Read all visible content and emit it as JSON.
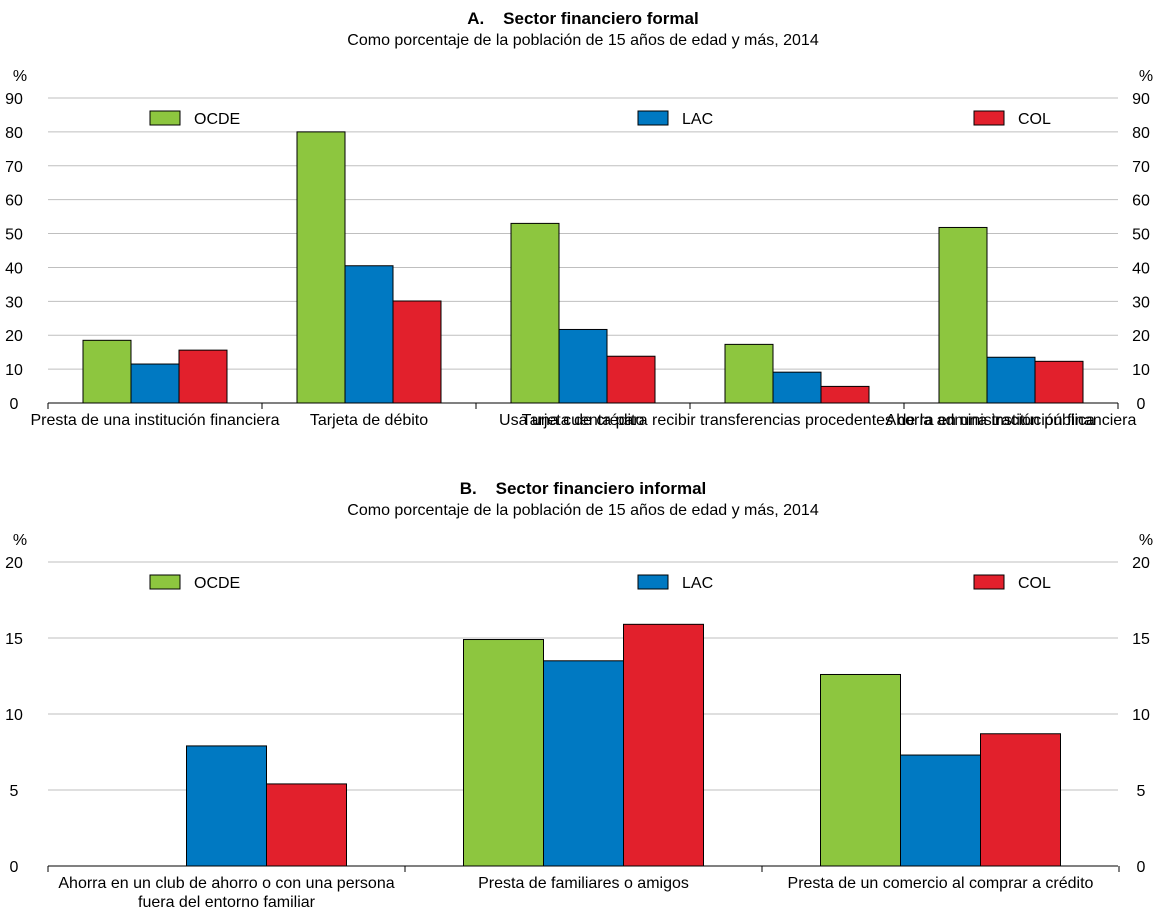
{
  "chart_data": [
    {
      "type": "bar",
      "title": "A.    Sector financiero formal",
      "subtitle": "Como porcentaje de la población de 15 años de edad y más, 2014",
      "ylabel_left": "%",
      "ylabel_right": "%",
      "ylim": [
        0,
        90
      ],
      "yticks": [
        0,
        10,
        20,
        30,
        40,
        50,
        60,
        70,
        80,
        90
      ],
      "grid": true,
      "legend": "top",
      "categories": [
        "Presta de una institución financiera",
        "Tarjeta de débito",
        "Tarjeta de crédito",
        "Usa una cuenta para recibir transferencias procedentes de la administración pública",
        "Ahorra en una institución financiera"
      ],
      "series": [
        {
          "name": "OCDE",
          "color": "#8dc63f",
          "values": [
            18.5,
            80,
            53,
            17.3,
            51.8
          ]
        },
        {
          "name": "LAC",
          "color": "#0079c2",
          "values": [
            11.5,
            40.5,
            21.7,
            9.1,
            13.5
          ]
        },
        {
          "name": "COL",
          "color": "#e2202c",
          "values": [
            15.6,
            30.1,
            13.8,
            4.9,
            12.3
          ]
        }
      ]
    },
    {
      "type": "bar",
      "title": "B.    Sector financiero informal",
      "subtitle": "Como porcentaje de la población de 15 años de edad y más, 2014",
      "ylabel_left": "%",
      "ylabel_right": "%",
      "ylim": [
        0,
        20
      ],
      "yticks": [
        0,
        5,
        10,
        15,
        20
      ],
      "grid": true,
      "legend": "top",
      "categories": [
        "Ahorra en un club de ahorro o con una persona fuera del entorno familiar",
        "Presta de familiares o amigos",
        "Presta de un comercio al comprar a crédito"
      ],
      "category_lines": [
        [
          "Ahorra en un club de ahorro o con una persona",
          "fuera del entorno familiar"
        ],
        [
          "Presta de familiares o amigos"
        ],
        [
          "Presta de un comercio al comprar a crédito"
        ]
      ],
      "series": [
        {
          "name": "OCDE",
          "color": "#8dc63f",
          "values": [
            null,
            14.9,
            12.6
          ]
        },
        {
          "name": "LAC",
          "color": "#0079c2",
          "values": [
            7.9,
            13.5,
            7.3
          ]
        },
        {
          "name": "COL",
          "color": "#e2202c",
          "values": [
            5.4,
            15.9,
            8.7
          ]
        }
      ]
    }
  ]
}
